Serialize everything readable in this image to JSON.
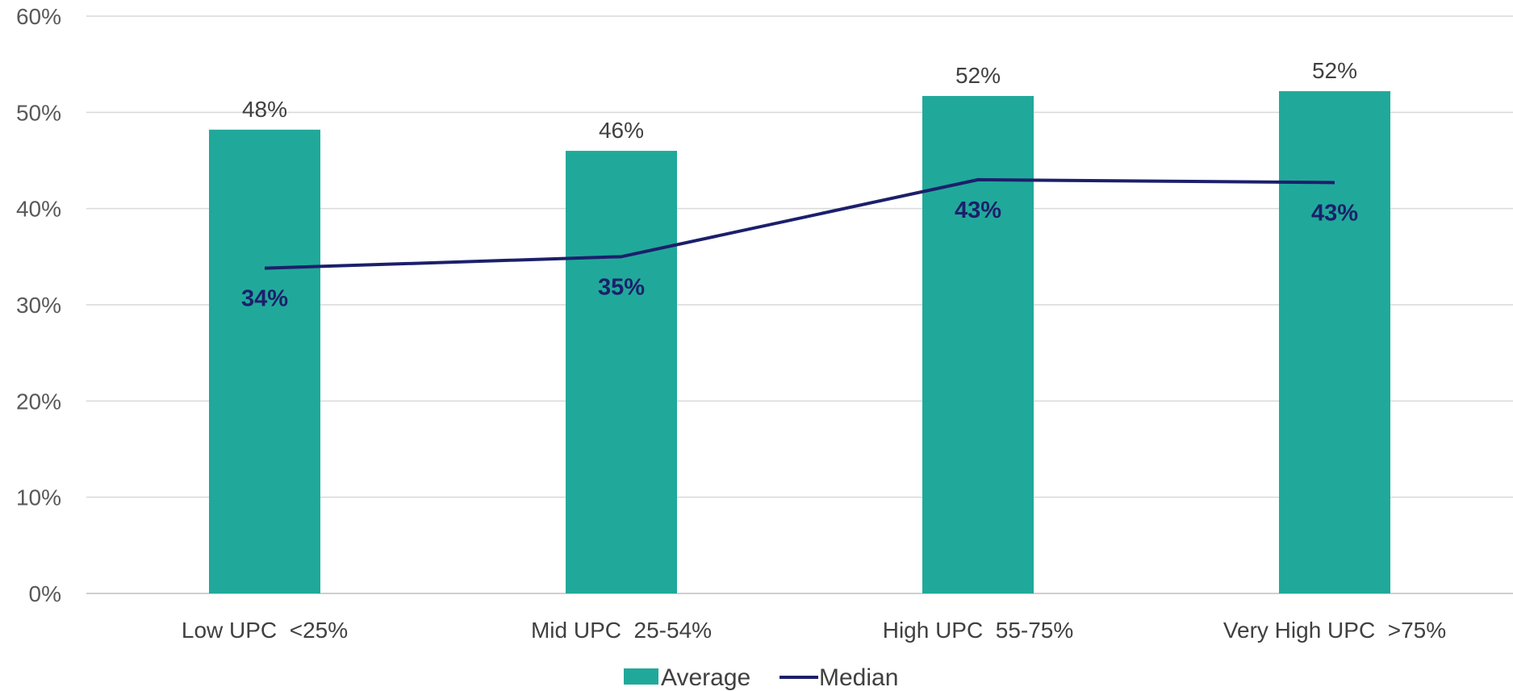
{
  "chart_data": {
    "type": "bar",
    "categories": [
      "Low UPC  <25%",
      "Mid UPC  25-54%",
      "High UPC  55-75%",
      "Very High UPC  >75%"
    ],
    "series": [
      {
        "name": "Average",
        "type": "bar",
        "values": [
          48.2,
          46.0,
          51.7,
          52.2
        ],
        "labels": [
          "48%",
          "46%",
          "52%",
          "52%"
        ],
        "color": "#20a99a"
      },
      {
        "name": "Median",
        "type": "line",
        "values": [
          33.8,
          35.0,
          43.0,
          42.7
        ],
        "labels": [
          "34%",
          "35%",
          "43%",
          "43%"
        ],
        "color": "#1c1f6b"
      }
    ],
    "ylim": [
      0,
      60
    ],
    "yticks": [
      0,
      10,
      20,
      30,
      40,
      50,
      60
    ],
    "ytick_labels": [
      "0%",
      "10%",
      "20%",
      "30%",
      "40%",
      "50%",
      "60%"
    ],
    "grid": true,
    "legend": "bottom-center",
    "title": "",
    "xlabel": "",
    "ylabel": ""
  }
}
